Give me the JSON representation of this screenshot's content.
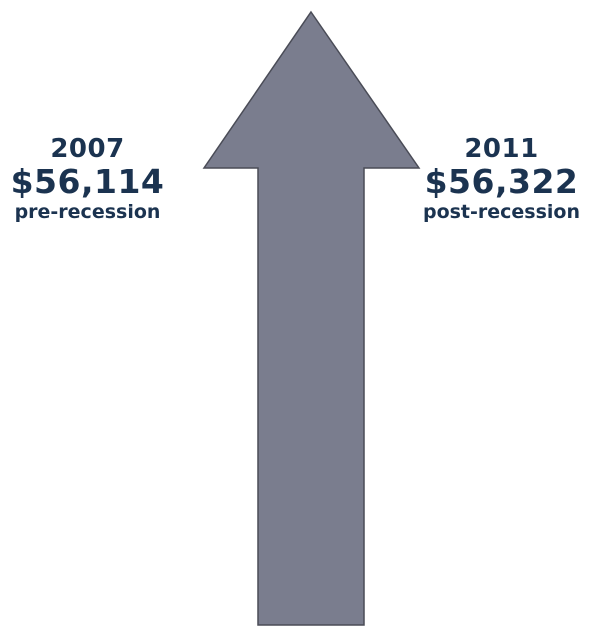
{
  "left": {
    "year": "2007",
    "value": "$56,114",
    "note": "pre-recession"
  },
  "right": {
    "year": "2011",
    "value": "$56,322",
    "note": "post-recession"
  },
  "colors": {
    "text": "#1b3350",
    "arrow_fill": "#7a7d8e",
    "arrow_stroke": "#4a4c57"
  }
}
